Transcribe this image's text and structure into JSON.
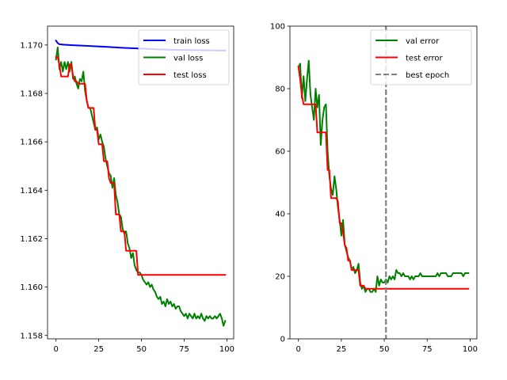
{
  "chart_data": [
    {
      "type": "line",
      "xlim": [
        -4.95,
        103.95
      ],
      "ylim": [
        1.15786,
        1.17078
      ],
      "xticks": [
        0,
        25,
        50,
        75,
        100
      ],
      "yticks": [
        1.158,
        1.16,
        1.162,
        1.164,
        1.166,
        1.168,
        1.17
      ],
      "ytick_labels": [
        "1.158",
        "1.160",
        "1.162",
        "1.164",
        "1.166",
        "1.168",
        "1.170"
      ],
      "xtick_labels": [
        "0",
        "25",
        "50",
        "75",
        "100"
      ],
      "legend_position": "top-right",
      "grid": false,
      "series": [
        {
          "name": "train loss",
          "color": "#0000ff",
          "x": [
            0,
            1,
            2,
            5,
            10,
            20,
            30,
            40,
            50,
            60,
            70,
            80,
            90,
            99
          ],
          "y": [
            1.17018,
            1.17008,
            1.17003,
            1.17001,
            1.16999,
            1.16996,
            1.16992,
            1.16988,
            1.16985,
            1.16982,
            1.1698,
            1.16979,
            1.16978,
            1.16977
          ]
        },
        {
          "name": "val loss",
          "color": "#008000",
          "x": [
            0,
            1,
            2,
            3,
            4,
            5,
            6,
            7,
            8,
            9,
            10,
            11,
            12,
            13,
            14,
            15,
            16,
            17,
            18,
            19,
            20,
            21,
            22,
            23,
            24,
            25,
            26,
            27,
            28,
            29,
            30,
            31,
            32,
            33,
            34,
            35,
            36,
            37,
            38,
            39,
            40,
            41,
            42,
            43,
            44,
            45,
            46,
            47,
            48,
            49,
            50,
            51,
            52,
            53,
            54,
            55,
            56,
            57,
            58,
            59,
            60,
            61,
            62,
            63,
            64,
            65,
            66,
            67,
            68,
            69,
            70,
            71,
            72,
            73,
            74,
            75,
            76,
            77,
            78,
            79,
            80,
            81,
            82,
            83,
            84,
            85,
            86,
            87,
            88,
            89,
            90,
            91,
            92,
            93,
            94,
            95,
            96,
            97,
            98,
            99
          ],
          "y": [
            1.1694,
            1.1699,
            1.169,
            1.1693,
            1.1689,
            1.1693,
            1.169,
            1.1693,
            1.1689,
            1.1693,
            1.1686,
            1.1687,
            1.1684,
            1.1682,
            1.1686,
            1.1685,
            1.1689,
            1.1681,
            1.1677,
            1.1674,
            1.1674,
            1.1671,
            1.1668,
            1.1665,
            1.1666,
            1.1661,
            1.1663,
            1.166,
            1.1658,
            1.1653,
            1.165,
            1.1647,
            1.1646,
            1.1641,
            1.1645,
            1.1638,
            1.1635,
            1.163,
            1.1629,
            1.1624,
            1.1622,
            1.1623,
            1.1618,
            1.1616,
            1.1612,
            1.1614,
            1.1609,
            1.1607,
            1.1606,
            1.1606,
            1.1605,
            1.1603,
            1.1602,
            1.1601,
            1.1602,
            1.16,
            1.1601,
            1.1599,
            1.1598,
            1.1596,
            1.1595,
            1.1596,
            1.1593,
            1.1594,
            1.1592,
            1.1595,
            1.1593,
            1.1594,
            1.1592,
            1.1593,
            1.1591,
            1.1592,
            1.1592,
            1.159,
            1.1589,
            1.1588,
            1.1589,
            1.1587,
            1.1589,
            1.1588,
            1.1587,
            1.1589,
            1.1587,
            1.1588,
            1.1587,
            1.1589,
            1.1587,
            1.1586,
            1.1588,
            1.1587,
            1.1588,
            1.1587,
            1.1587,
            1.1588,
            1.1587,
            1.1588,
            1.1589,
            1.1587,
            1.1584,
            1.1586
          ]
        },
        {
          "name": "test loss",
          "color": "#ff0000",
          "x": [
            0,
            1,
            2,
            3,
            4,
            5,
            6,
            7,
            8,
            9,
            10,
            11,
            12,
            13,
            14,
            15,
            16,
            17,
            18,
            19,
            20,
            21,
            22,
            23,
            24,
            25,
            26,
            27,
            28,
            29,
            30,
            31,
            32,
            33,
            34,
            35,
            36,
            37,
            38,
            39,
            40,
            41,
            42,
            43,
            44,
            45,
            46,
            47,
            48,
            49,
            50,
            51,
            52,
            53,
            54,
            55,
            60,
            70,
            80,
            90,
            99
          ],
          "y": [
            1.1695,
            1.1695,
            1.1692,
            1.1687,
            1.1687,
            1.1687,
            1.1687,
            1.1687,
            1.1692,
            1.1692,
            1.1687,
            1.1685,
            1.1685,
            1.1684,
            1.1684,
            1.1684,
            1.1684,
            1.1684,
            1.1677,
            1.1674,
            1.1674,
            1.1674,
            1.1674,
            1.1665,
            1.1665,
            1.1659,
            1.1659,
            1.1659,
            1.1652,
            1.1652,
            1.1652,
            1.1645,
            1.1643,
            1.1643,
            1.1643,
            1.163,
            1.163,
            1.163,
            1.1623,
            1.1623,
            1.1623,
            1.1615,
            1.1615,
            1.1615,
            1.1615,
            1.1615,
            1.1615,
            1.1615,
            1.1605,
            1.1605,
            1.1605,
            1.1605,
            1.1605,
            1.1605,
            1.1605,
            1.1605,
            1.1605,
            1.1605,
            1.1605,
            1.1605,
            1.1605
          ]
        }
      ]
    },
    {
      "type": "line",
      "xlim": [
        -4.95,
        103.95
      ],
      "ylim": [
        0,
        100
      ],
      "xticks": [
        0,
        25,
        50,
        75,
        100
      ],
      "yticks": [
        0,
        20,
        40,
        60,
        80,
        100
      ],
      "ytick_labels": [
        "0",
        "20",
        "40",
        "60",
        "80",
        "100"
      ],
      "xtick_labels": [
        "0",
        "25",
        "50",
        "75",
        "100"
      ],
      "legend_position": "top-right",
      "grid": false,
      "vline": {
        "name": "best epoch",
        "x": 51,
        "color": "#808080"
      },
      "series": [
        {
          "name": "val error",
          "color": "#008000",
          "x": [
            0,
            1,
            2,
            3,
            4,
            5,
            6,
            7,
            8,
            9,
            10,
            11,
            12,
            13,
            14,
            15,
            16,
            17,
            18,
            19,
            20,
            21,
            22,
            23,
            24,
            25,
            26,
            27,
            28,
            29,
            30,
            31,
            32,
            33,
            34,
            35,
            36,
            37,
            38,
            39,
            40,
            41,
            42,
            43,
            44,
            45,
            46,
            47,
            48,
            49,
            50,
            51,
            52,
            53,
            54,
            55,
            56,
            57,
            58,
            59,
            60,
            61,
            62,
            63,
            64,
            65,
            66,
            67,
            68,
            69,
            70,
            71,
            72,
            73,
            74,
            75,
            76,
            77,
            78,
            79,
            80,
            81,
            82,
            83,
            84,
            85,
            86,
            87,
            88,
            89,
            90,
            91,
            92,
            93,
            94,
            95,
            96,
            97,
            98,
            99
          ],
          "y": [
            87,
            88,
            77,
            84,
            76,
            83,
            89,
            78,
            74,
            70,
            80,
            74,
            78,
            62,
            70,
            74,
            75,
            60,
            52,
            48,
            46,
            52,
            48,
            42,
            38,
            33,
            38,
            30,
            28,
            26,
            25,
            22,
            23,
            21,
            22,
            24,
            18,
            16,
            17,
            15,
            16,
            16,
            15,
            15,
            16,
            15,
            20,
            17,
            19,
            18,
            18,
            19,
            18,
            20,
            19,
            20,
            19,
            22,
            21,
            21,
            20,
            21,
            20,
            20,
            20,
            19,
            20,
            19,
            20,
            20,
            20,
            21,
            20,
            20,
            20,
            20,
            20,
            20,
            20,
            20,
            20,
            21,
            20,
            21,
            21,
            21,
            21,
            20,
            20,
            20,
            21,
            21,
            21,
            21,
            21,
            21,
            20,
            21,
            21,
            21
          ]
        },
        {
          "name": "test error",
          "color": "#ff0000",
          "x": [
            0,
            1,
            2,
            3,
            4,
            5,
            6,
            7,
            8,
            9,
            10,
            11,
            12,
            13,
            14,
            15,
            16,
            17,
            18,
            19,
            20,
            21,
            22,
            23,
            24,
            25,
            26,
            27,
            28,
            29,
            30,
            31,
            32,
            33,
            34,
            35,
            36,
            37,
            38,
            39,
            40,
            41,
            42,
            43,
            44,
            45,
            46,
            47,
            48,
            49,
            50,
            51,
            60,
            70,
            80,
            90,
            99
          ],
          "y": [
            87,
            83,
            78,
            75,
            75,
            75,
            75,
            75,
            75,
            75,
            75,
            66,
            66,
            66,
            66,
            66,
            66,
            54,
            54,
            45,
            45,
            45,
            45,
            44,
            37,
            37,
            34,
            30,
            29,
            25,
            25,
            22,
            22,
            22,
            22,
            22,
            17,
            17,
            17,
            16,
            16,
            16,
            16,
            16,
            16,
            16,
            16,
            16,
            16,
            16,
            16,
            16,
            16,
            16,
            16,
            16,
            16
          ]
        }
      ]
    }
  ]
}
